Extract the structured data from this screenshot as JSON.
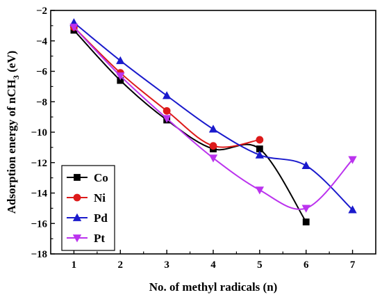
{
  "chart_data": {
    "type": "line",
    "xlabel": "No. of methyl radicals (n)",
    "ylabel_main": "Adsorption energy of nCH",
    "ylabel_sub": "3",
    "ylabel_unit": " (eV)",
    "xlim": [
      0.5,
      7.5
    ],
    "ylim": [
      -18,
      -2
    ],
    "xticks": [
      1,
      2,
      3,
      4,
      5,
      6,
      7
    ],
    "yticks": [
      -18,
      -16,
      -14,
      -12,
      -10,
      -8,
      -6,
      -4,
      -2
    ],
    "grid": false,
    "legend_position": "bottom-left",
    "series": [
      {
        "name": "Co",
        "color": "#000000",
        "marker": "square",
        "x": [
          1,
          2,
          3,
          4,
          5,
          6
        ],
        "y": [
          -3.3,
          -6.6,
          -9.2,
          -11.1,
          -11.1,
          -15.9
        ]
      },
      {
        "name": "Ni",
        "color": "#dd1a1a",
        "marker": "circle",
        "x": [
          1,
          2,
          3,
          4,
          5
        ],
        "y": [
          -3.1,
          -6.1,
          -8.6,
          -10.9,
          -10.5
        ]
      },
      {
        "name": "Pd",
        "color": "#1a1acc",
        "marker": "triangle-up",
        "x": [
          1,
          2,
          3,
          4,
          5,
          6,
          7
        ],
        "y": [
          -2.8,
          -5.3,
          -7.6,
          -9.8,
          -11.5,
          -12.2,
          -15.1
        ]
      },
      {
        "name": "Pt",
        "color": "#bb33ee",
        "marker": "triangle-down",
        "x": [
          1,
          2,
          3,
          4,
          5,
          6,
          7
        ],
        "y": [
          -3.1,
          -6.3,
          -9.1,
          -11.7,
          -13.8,
          -15.0,
          -11.8
        ]
      }
    ]
  }
}
